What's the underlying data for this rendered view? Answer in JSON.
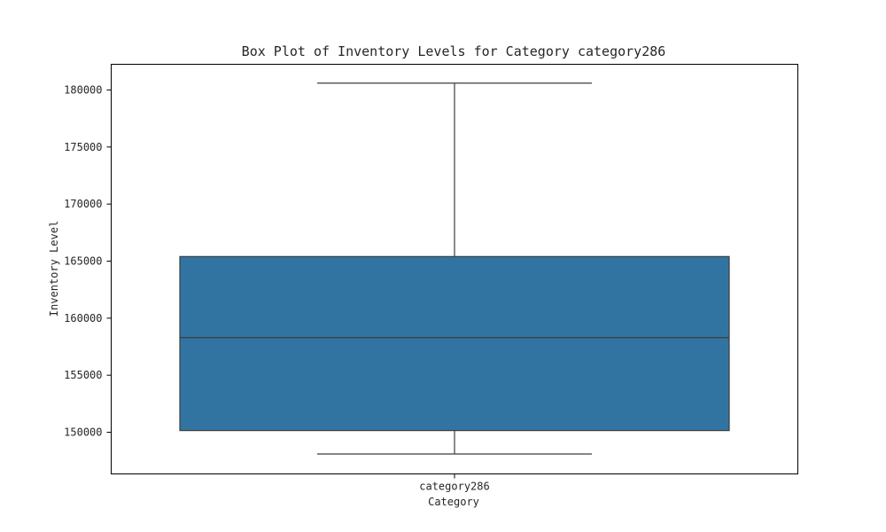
{
  "chart_data": {
    "type": "box",
    "title": "Box Plot of Inventory Levels for Category category286",
    "xlabel": "Category",
    "ylabel": "Inventory Level",
    "categories": [
      "category286"
    ],
    "boxes": [
      {
        "category": "category286",
        "whislo": 148100,
        "q1": 150150,
        "med": 158300,
        "q3": 165400,
        "whishi": 180600
      }
    ],
    "ylim": [
      146350,
      182250
    ],
    "yticks": [
      150000,
      155000,
      160000,
      165000,
      170000,
      175000,
      180000
    ],
    "ytick_labels": [
      "150000",
      "155000",
      "160000",
      "165000",
      "170000",
      "175000",
      "180000"
    ],
    "box_color": "#3274a1",
    "line_color": "#3d3d3d",
    "grid": false,
    "legend": "none"
  }
}
